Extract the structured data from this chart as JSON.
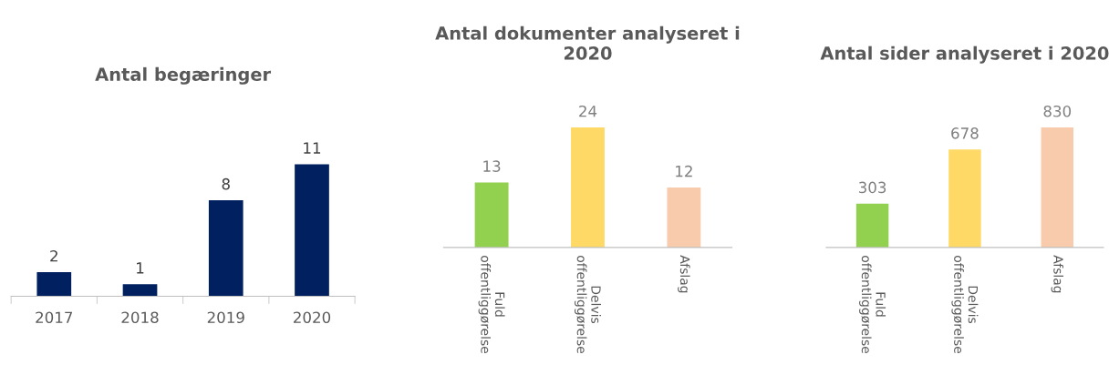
{
  "chart_data": [
    {
      "type": "bar",
      "title": "Antal begæringer",
      "categories": [
        "2017",
        "2018",
        "2019",
        "2020"
      ],
      "values": [
        2,
        1,
        8,
        11
      ],
      "colors": [
        "#002060",
        "#002060",
        "#002060",
        "#002060"
      ],
      "data_labels": true,
      "tick_labels": "x",
      "grid": false,
      "legend": false
    },
    {
      "type": "bar",
      "title": "Antal dokumenter analyseret i\n2020",
      "categories": [
        "Fuld\noffentliggørelse",
        "Delvis\noffentliggørelse",
        "Afslag"
      ],
      "values": [
        13,
        24,
        12
      ],
      "colors": [
        "#92d050",
        "#ffd966",
        "#f8cbad"
      ],
      "data_labels": true,
      "tick_labels": "x",
      "grid": false,
      "legend": false
    },
    {
      "type": "bar",
      "title": "Antal sider analyseret i 2020",
      "categories": [
        "Fuld\noffentliggørelse",
        "Delvis\noffentliggørelse",
        "Afslag"
      ],
      "values": [
        303,
        678,
        830
      ],
      "colors": [
        "#92d050",
        "#ffd966",
        "#f8cbad"
      ],
      "data_labels": true,
      "tick_labels": "x",
      "grid": false,
      "legend": false
    }
  ]
}
